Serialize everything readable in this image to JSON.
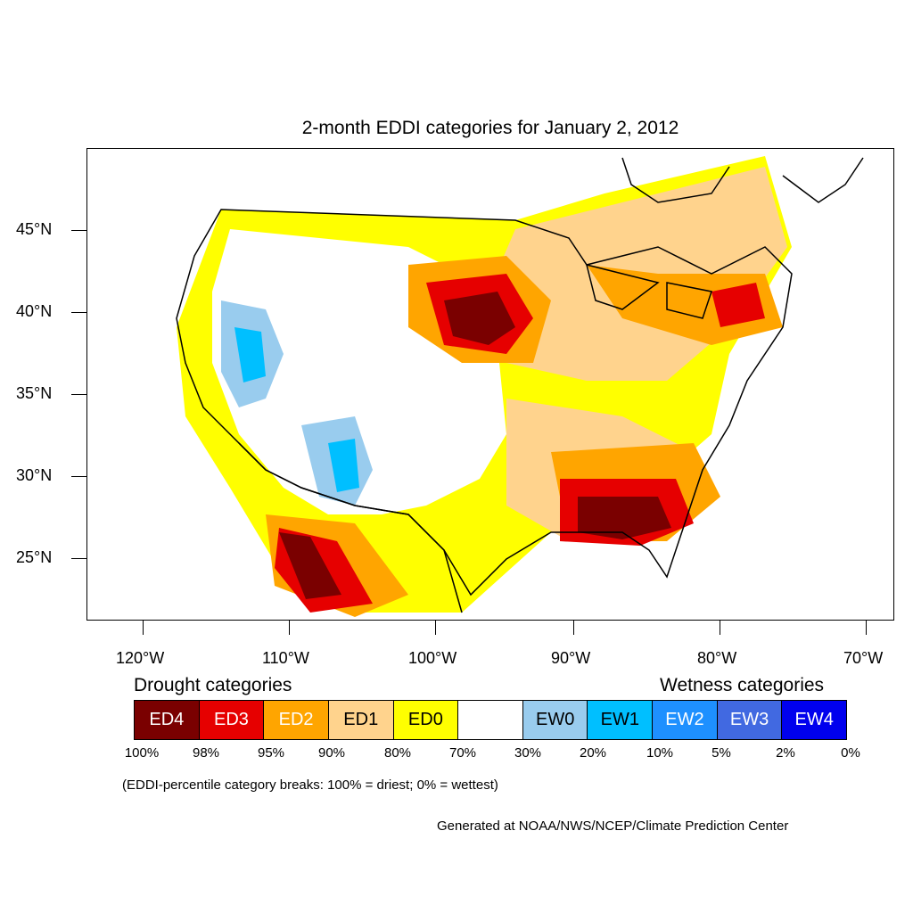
{
  "title": "2-month EDDI categories for January 2, 2012",
  "axes": {
    "lat_labels": [
      "45°N",
      "40°N",
      "35°N",
      "30°N",
      "25°N"
    ],
    "lon_labels": [
      "120°W",
      "110°W",
      "100°W",
      "90°W",
      "80°W",
      "70°W"
    ]
  },
  "legend": {
    "drought_heading": "Drought categories",
    "wetness_heading": "Wetness categories",
    "categories": [
      {
        "label": "ED4",
        "color": "#7a0000",
        "text_color": "#ffffff"
      },
      {
        "label": "ED3",
        "color": "#e60000",
        "text_color": "#ffffff"
      },
      {
        "label": "ED2",
        "color": "#ffa500",
        "text_color": "#ffffff"
      },
      {
        "label": "ED1",
        "color": "#ffd38d",
        "text_color": "#000000"
      },
      {
        "label": "ED0",
        "color": "#ffff00",
        "text_color": "#000000"
      },
      {
        "label": "",
        "color": "#ffffff",
        "text_color": "#000000"
      },
      {
        "label": "EW0",
        "color": "#99ccee",
        "text_color": "#000000"
      },
      {
        "label": "EW1",
        "color": "#00bfff",
        "text_color": "#000000"
      },
      {
        "label": "EW2",
        "color": "#1e90ff",
        "text_color": "#ffffff"
      },
      {
        "label": "EW3",
        "color": "#4169e1",
        "text_color": "#ffffff"
      },
      {
        "label": "EW4",
        "color": "#0000ee",
        "text_color": "#ffffff"
      }
    ],
    "breaks": [
      "100%",
      "98%",
      "95%",
      "90%",
      "80%",
      "70%",
      "30%",
      "20%",
      "10%",
      "5%",
      "2%",
      "0%"
    ]
  },
  "note": "(EDDI-percentile category breaks: 100% = driest; 0% = wettest)",
  "credit": "Generated at NOAA/NWS/NCEP/Climate Prediction Center"
}
